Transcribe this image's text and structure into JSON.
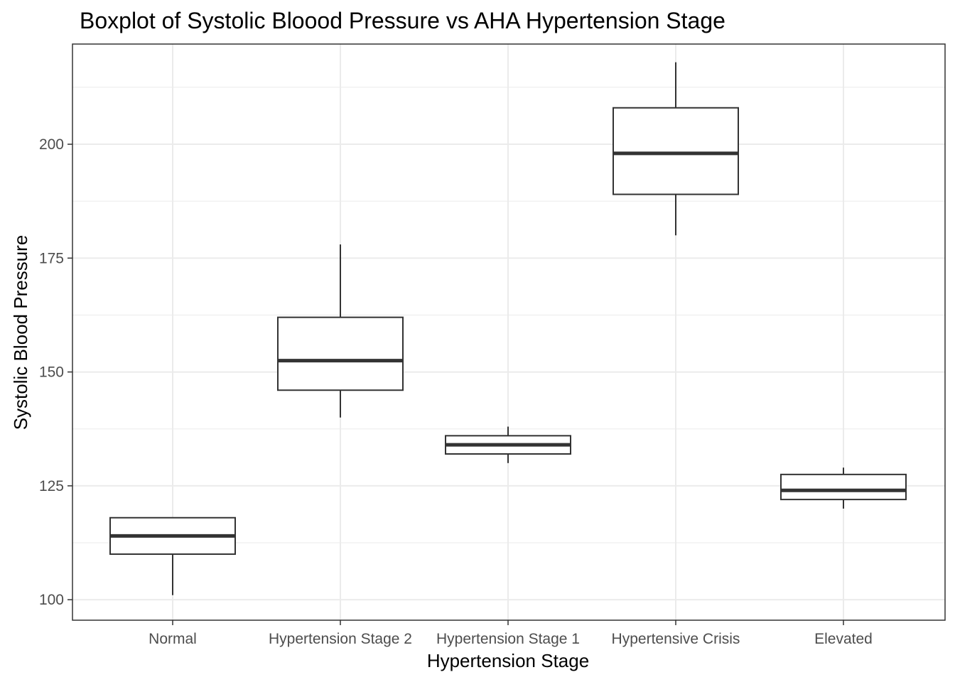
{
  "chart_data": {
    "type": "boxplot",
    "title": "Boxplot of Systolic Bloood Pressure vs AHA Hypertension Stage",
    "xlabel": "Hypertension Stage",
    "ylabel": "Systolic Blood Pressure",
    "ylim": [
      95.5,
      222
    ],
    "yticks": [
      100,
      125,
      150,
      175,
      200
    ],
    "grid": true,
    "categories": [
      "Normal",
      "Hypertension Stage 2",
      "Hypertension Stage 1",
      "Hypertensive Crisis",
      "Elevated"
    ],
    "boxes": [
      {
        "category": "Normal",
        "min": 101,
        "q1": 110,
        "median": 114,
        "q3": 118,
        "max": 118
      },
      {
        "category": "Hypertension Stage 2",
        "min": 140,
        "q1": 146,
        "median": 152.5,
        "q3": 162,
        "max": 178
      },
      {
        "category": "Hypertension Stage 1",
        "min": 130,
        "q1": 132,
        "median": 134,
        "q3": 136,
        "max": 138
      },
      {
        "category": "Hypertensive Crisis",
        "min": 180,
        "q1": 189,
        "median": 198,
        "q3": 208,
        "max": 218
      },
      {
        "category": "Elevated",
        "min": 120,
        "q1": 122,
        "median": 124,
        "q3": 127.5,
        "max": 129
      }
    ],
    "colors": {
      "box_stroke": "#333333",
      "grid": "#ebebeb",
      "panel_border": "#333333",
      "tick_text": "#4d4d4d"
    }
  }
}
